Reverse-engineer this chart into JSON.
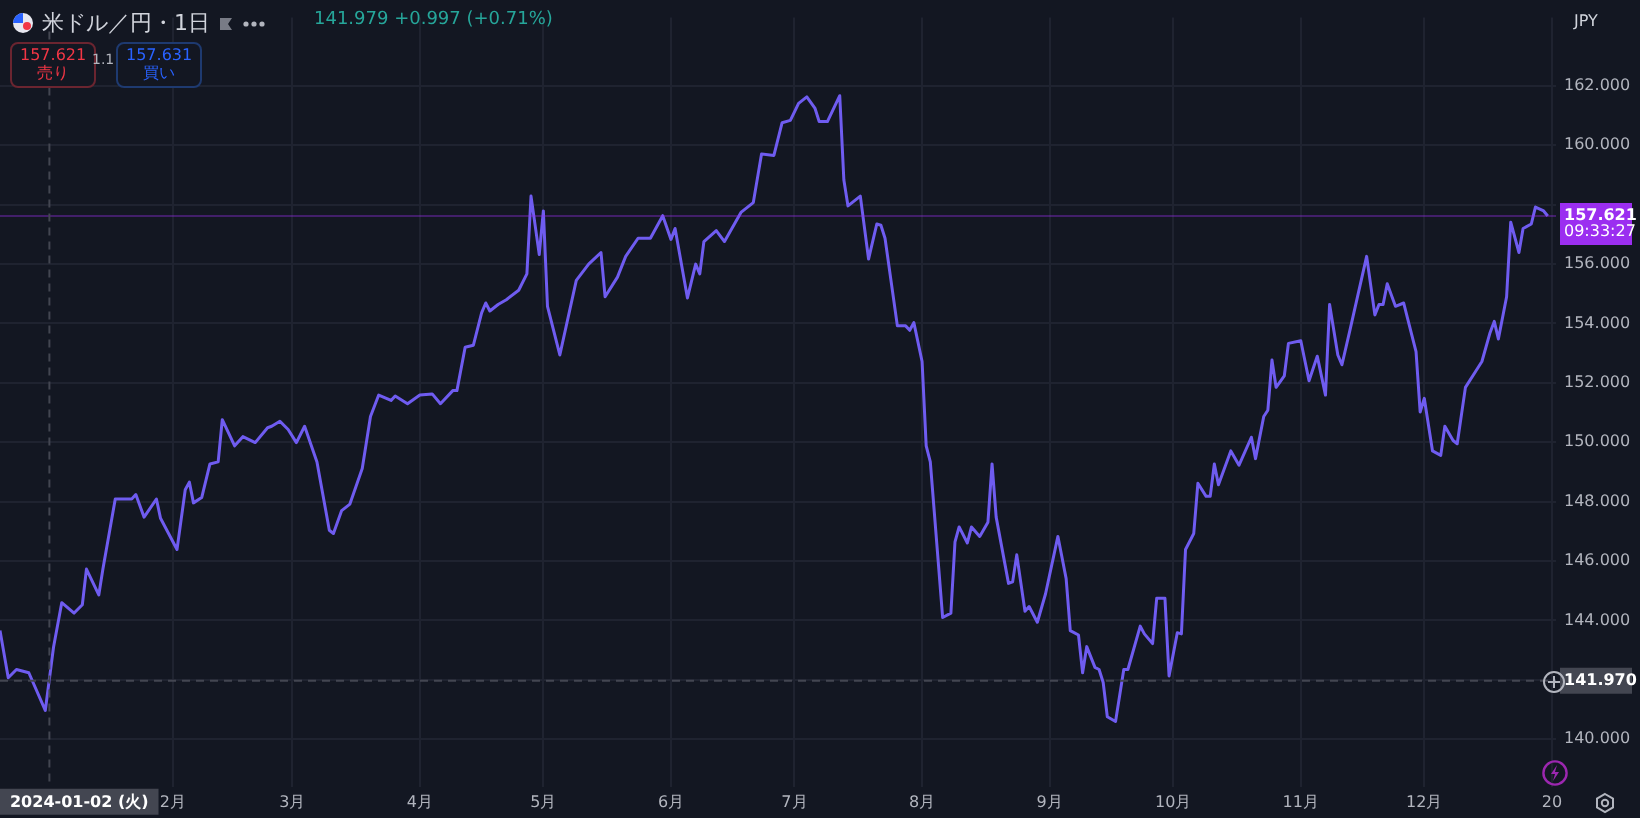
{
  "chart_data": {
    "type": "line",
    "title": "米ドル／円・1日",
    "subtitle": "141.979 +0.997 (+0.71%)",
    "x": [
      "2023-12-21",
      "2023-12-23",
      "2023-12-25",
      "2023-12-28",
      "2024-01-01",
      "2024-01-03",
      "2024-01-05",
      "2024-01-08",
      "2024-01-10",
      "2024-01-11",
      "2024-01-14",
      "2024-01-15",
      "2024-01-18",
      "2024-01-22",
      "2024-01-23",
      "2024-01-25",
      "2024-01-28",
      "2024-01-29",
      "2024-02-02",
      "2024-02-04",
      "2024-02-05",
      "2024-02-06",
      "2024-02-08",
      "2024-02-10",
      "2024-02-12",
      "2024-02-13",
      "2024-02-16",
      "2024-02-18",
      "2024-02-21",
      "2024-02-24",
      "2024-02-25",
      "2024-02-27",
      "2024-02-29",
      "2024-03-02",
      "2024-03-04",
      "2024-03-07",
      "2024-03-10",
      "2024-03-11",
      "2024-03-13",
      "2024-03-15",
      "2024-03-18",
      "2024-03-20",
      "2024-03-22",
      "2024-03-25",
      "2024-03-26",
      "2024-03-29",
      "2024-04-01",
      "2024-04-04",
      "2024-04-06",
      "2024-04-09",
      "2024-04-10",
      "2024-04-12",
      "2024-04-14",
      "2024-04-16",
      "2024-04-17",
      "2024-04-18",
      "2024-04-20",
      "2024-04-22",
      "2024-04-25",
      "2024-04-27",
      "2024-04-28",
      "2024-04-30",
      "2024-05-01",
      "2024-05-02",
      "2024-05-05",
      "2024-05-09",
      "2024-05-12",
      "2024-05-15",
      "2024-05-16",
      "2024-05-19",
      "2024-05-21",
      "2024-05-24",
      "2024-05-27",
      "2024-05-30",
      "2024-06-01",
      "2024-06-02",
      "2024-06-05",
      "2024-06-07",
      "2024-06-08",
      "2024-06-09",
      "2024-06-12",
      "2024-06-14",
      "2024-06-18",
      "2024-06-21",
      "2024-06-23",
      "2024-06-26",
      "2024-06-28",
      "2024-06-30",
      "2024-07-02",
      "2024-07-04",
      "2024-07-06",
      "2024-07-07",
      "2024-07-09",
      "2024-07-12",
      "2024-07-13",
      "2024-07-14",
      "2024-07-17",
      "2024-07-19",
      "2024-07-21",
      "2024-07-22",
      "2024-07-23",
      "2024-07-26",
      "2024-07-28",
      "2024-07-29",
      "2024-07-30",
      "2024-08-01",
      "2024-08-02",
      "2024-08-03",
      "2024-08-06",
      "2024-08-08",
      "2024-08-09",
      "2024-08-10",
      "2024-08-12",
      "2024-08-13",
      "2024-08-15",
      "2024-08-17",
      "2024-08-18",
      "2024-08-19",
      "2024-08-22",
      "2024-08-23",
      "2024-08-24",
      "2024-08-26",
      "2024-08-27",
      "2024-08-29",
      "2024-08-31",
      "2024-09-03",
      "2024-09-05",
      "2024-09-06",
      "2024-09-08",
      "2024-09-09",
      "2024-09-10",
      "2024-09-12",
      "2024-09-13",
      "2024-09-14",
      "2024-09-15",
      "2024-09-17",
      "2024-09-19",
      "2024-09-20",
      "2024-09-23",
      "2024-09-24",
      "2024-09-26",
      "2024-09-27",
      "2024-09-29",
      "2024-09-30",
      "2024-10-02",
      "2024-10-03",
      "2024-10-04",
      "2024-10-06",
      "2024-10-07",
      "2024-10-09",
      "2024-10-10",
      "2024-10-11",
      "2024-10-12",
      "2024-10-15",
      "2024-10-17",
      "2024-10-20",
      "2024-10-21",
      "2024-10-23",
      "2024-10-24",
      "2024-10-25",
      "2024-10-26",
      "2024-10-28",
      "2024-10-29",
      "2024-11-01",
      "2024-11-03",
      "2024-11-05",
      "2024-11-07",
      "2024-11-08",
      "2024-11-10",
      "2024-11-11",
      "2024-11-13",
      "2024-11-17",
      "2024-11-19",
      "2024-11-20",
      "2024-11-21",
      "2024-11-22",
      "2024-11-24",
      "2024-11-26",
      "2024-11-27",
      "2024-11-29",
      "2024-11-30",
      "2024-12-01",
      "2024-12-03",
      "2024-12-05",
      "2024-12-06",
      "2024-12-08",
      "2024-12-09",
      "2024-12-11",
      "2024-12-14",
      "2024-12-15",
      "2024-12-17",
      "2024-12-18",
      "2024-12-19",
      "2024-12-21",
      "2024-12-22",
      "2024-12-24",
      "2024-12-25",
      "2024-12-27",
      "2024-12-28",
      "2024-12-30",
      "2024-12-31"
    ],
    "series": [
      {
        "color": "#6f5cf0",
        "values": [
          143.66,
          142.07,
          142.35,
          142.24,
          140.97,
          143.1,
          144.6,
          144.25,
          144.53,
          145.73,
          144.86,
          145.73,
          148.09,
          148.09,
          148.24,
          147.48,
          148.09,
          147.44,
          146.39,
          148.4,
          148.66,
          147.96,
          148.14,
          149.27,
          149.34,
          150.76,
          149.88,
          150.19,
          149.99,
          150.49,
          150.54,
          150.71,
          150.43,
          149.99,
          150.54,
          149.34,
          147.04,
          146.93,
          147.7,
          147.92,
          149.12,
          150.87,
          151.59,
          151.41,
          151.56,
          151.3,
          151.59,
          151.63,
          151.3,
          151.74,
          151.74,
          153.2,
          153.27,
          154.36,
          154.69,
          154.42,
          154.64,
          154.8,
          155.12,
          155.67,
          158.29,
          156.32,
          157.79,
          154.58,
          152.94,
          155.45,
          156.0,
          156.39,
          154.9,
          155.56,
          156.26,
          156.87,
          156.87,
          157.63,
          156.83,
          157.2,
          154.86,
          156.0,
          155.67,
          156.76,
          157.13,
          156.76,
          157.74,
          158.07,
          159.71,
          159.66,
          160.76,
          160.84,
          161.41,
          161.63,
          161.24,
          160.8,
          160.8,
          161.67,
          158.83,
          157.96,
          158.29,
          156.17,
          157.35,
          157.31,
          156.87,
          153.92,
          153.92,
          153.77,
          154.03,
          152.72,
          149.88,
          149.34,
          144.1,
          144.25,
          146.65,
          147.15,
          146.61,
          147.15,
          146.83,
          147.31,
          149.27,
          147.48,
          145.25,
          145.3,
          146.21,
          144.31,
          144.47,
          143.94,
          144.9,
          146.83,
          145.41,
          143.66,
          143.51,
          142.24,
          143.12,
          142.42,
          142.35,
          141.91,
          140.76,
          140.6,
          142.35,
          142.35,
          143.81,
          143.55,
          143.22,
          144.75,
          144.75,
          142.13,
          143.59,
          143.55,
          146.39,
          146.93,
          148.62,
          148.18,
          148.18,
          149.27,
          148.57,
          149.71,
          149.23,
          150.17,
          149.45,
          150.87,
          151.08,
          152.77,
          151.85,
          152.24,
          153.33,
          153.42,
          152.07,
          152.9,
          151.59,
          154.64,
          152.94,
          152.61,
          153.81,
          156.26,
          154.29,
          154.64,
          154.64,
          155.34,
          154.58,
          154.69,
          154.14,
          153.05,
          151.02,
          151.48,
          149.71,
          149.56,
          150.54,
          150.06,
          149.95,
          151.85,
          152.5,
          152.72,
          153.7,
          154.07,
          153.48,
          154.9,
          157.41,
          156.39,
          157.2,
          157.35,
          157.92,
          157.79,
          157.62
        ]
      }
    ],
    "xlim": [
      "2023-12-21",
      "2025-01-02"
    ],
    "xticks": [
      {
        "value": "2024-02-01",
        "label": "2月"
      },
      {
        "value": "2024-03-01",
        "label": "3月"
      },
      {
        "value": "2024-04-01",
        "label": "4月"
      },
      {
        "value": "2024-05-01",
        "label": "5月"
      },
      {
        "value": "2024-06-01",
        "label": "6月"
      },
      {
        "value": "2024-07-01",
        "label": "7月"
      },
      {
        "value": "2024-08-01",
        "label": "8月"
      },
      {
        "value": "2024-09-01",
        "label": "9月"
      },
      {
        "value": "2024-10-01",
        "label": "10月"
      },
      {
        "value": "2024-11-01",
        "label": "11月"
      },
      {
        "value": "2024-12-01",
        "label": "12月"
      },
      {
        "value": "2025-01-01",
        "label": "20"
      }
    ],
    "ylim": [
      138.4,
      164.3
    ],
    "yticks": [
      {
        "value": 140,
        "label": "140.000"
      },
      {
        "value": 142,
        "label": null
      },
      {
        "value": 144,
        "label": "144.000"
      },
      {
        "value": 146,
        "label": "146.000"
      },
      {
        "value": 148,
        "label": "148.000"
      },
      {
        "value": 150,
        "label": "150.000"
      },
      {
        "value": 152,
        "label": "152.000"
      },
      {
        "value": 154,
        "label": "154.000"
      },
      {
        "value": 156,
        "label": "156.000"
      },
      {
        "value": 158,
        "label": null
      },
      {
        "value": 160,
        "label": "160.000"
      },
      {
        "value": 162,
        "label": "162.000"
      }
    ],
    "grid": true,
    "marker": "none",
    "line_style": "solid",
    "ref_lines": [
      {
        "axis": "y",
        "value": 141.97,
        "label": "141.970",
        "color": "#434651",
        "line_style": "dashed"
      },
      {
        "axis": "y",
        "value": 157.621,
        "label": "157.621",
        "color": "#9b2ef0",
        "line_style": "solid"
      },
      {
        "axis": "x",
        "value": "2024-01-02",
        "label": "2024-01-02 (火)",
        "color": "#434651",
        "line_style": "dashed"
      }
    ],
    "annotations": [
      "157.621",
      "売り",
      "1.1",
      "157.631",
      "買い",
      "JPY",
      "09:33:27"
    ]
  }
}
